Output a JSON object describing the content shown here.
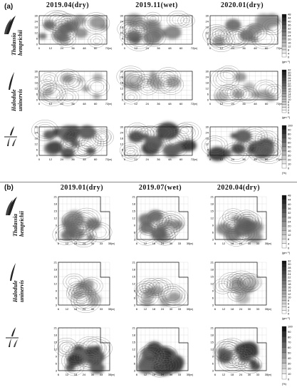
{
  "figure": {
    "panel_a": {
      "label": "(a)",
      "columns": [
        "2019.04(dry)",
        "2019.11(wet)",
        "2020.01(dry)"
      ],
      "rows": [
        {
          "species": [
            "Thalassia",
            "hemprichii"
          ],
          "unit": "(gm⁻²)",
          "scale_ticks": [
            "48",
            "44",
            "40",
            "36",
            "32",
            "28",
            "24",
            "20",
            "16",
            "12",
            "8",
            "4",
            "0"
          ]
        },
        {
          "species": [
            "Halodule",
            "uninervis"
          ],
          "unit": "(gm⁻²)",
          "scale_ticks": [
            "32",
            "30",
            "28",
            "26",
            "24",
            "22",
            "20",
            "18",
            "16",
            "14",
            "12",
            "10",
            "8",
            "6",
            "4",
            "2",
            "0"
          ]
        },
        {
          "species": [
            "T",
            "H"
          ],
          "unit": "(%)",
          "scale_ticks": [
            "100",
            "90",
            "80",
            "70",
            "60",
            "50",
            "40",
            "30",
            "20",
            "10",
            "0"
          ]
        }
      ],
      "x_ticks": [
        "0",
        "12",
        "24",
        "36",
        "48",
        "60",
        "72"
      ],
      "y_ticks": [
        "30",
        "24",
        "18",
        "12",
        "6",
        "0"
      ],
      "axis_unit": "(m)"
    },
    "panel_b": {
      "label": "(b)",
      "columns": [
        "2019.01(dry)",
        "2019.07(wet)",
        "2020.04(dry)"
      ],
      "rows": [
        {
          "species": [
            "Thalassia",
            "hemprichii"
          ],
          "unit": "(gm⁻²)",
          "scale_ticks": [
            "48",
            "44",
            "40",
            "36",
            "32",
            "28",
            "24",
            "20",
            "16",
            "12",
            "8",
            "4",
            "0"
          ]
        },
        {
          "species": [
            "Halodule",
            "uninervis"
          ],
          "unit": "(gm⁻²)",
          "scale_ticks": [
            "32",
            "30",
            "28",
            "26",
            "24",
            "22",
            "20",
            "18",
            "16",
            "14",
            "12",
            "10",
            "8",
            "6",
            "4",
            "2",
            "0"
          ]
        },
        {
          "species": [
            "T",
            "H"
          ],
          "unit": "(%)",
          "scale_ticks": [
            "100",
            "90",
            "80",
            "70",
            "60",
            "50",
            "40",
            "30",
            "20",
            "10",
            "0"
          ]
        }
      ],
      "x_ticks": [
        "6",
        "12",
        "18",
        "24",
        "30",
        "33",
        "35"
      ],
      "y_ticks": [
        "21",
        "18",
        "15",
        "12",
        "9",
        "6",
        "3"
      ],
      "axis_unit": "(m)"
    }
  }
}
